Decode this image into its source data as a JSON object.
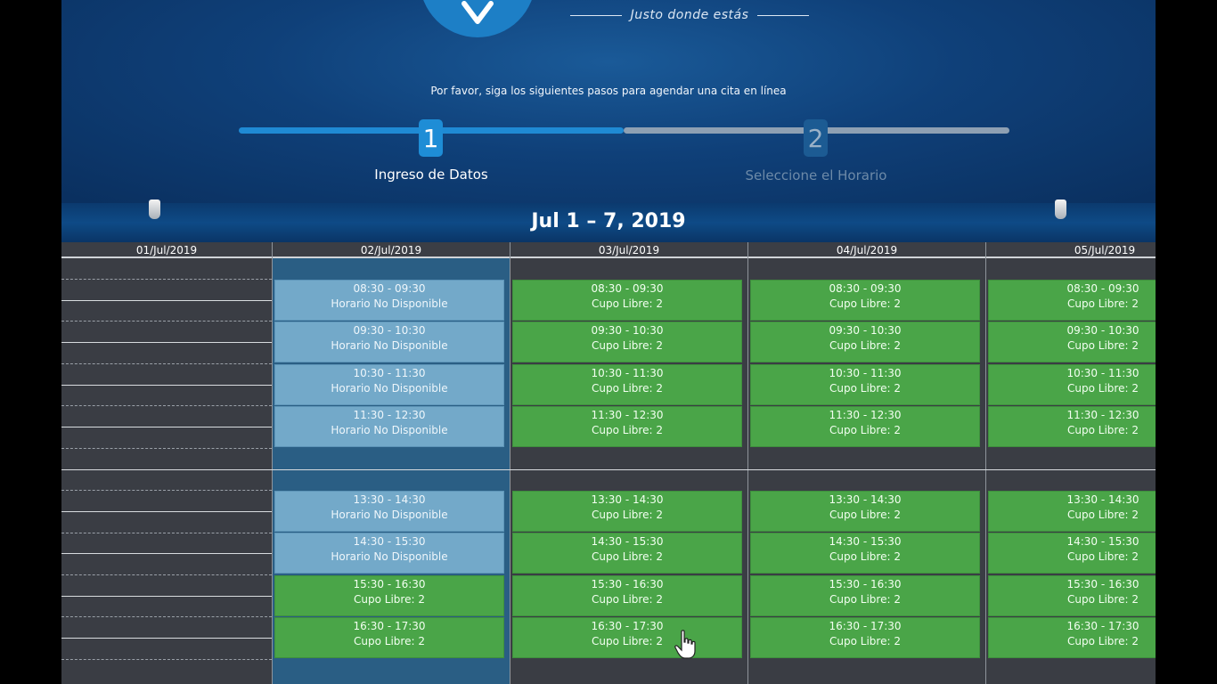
{
  "header": {
    "tagline": "Justo donde estás",
    "instructions": "Por favor, siga los siguientes pasos para agendar una cita en línea"
  },
  "steps": [
    {
      "number": "1",
      "label": "Ingreso de Datos",
      "status": "active"
    },
    {
      "number": "2",
      "label": "Seleccione el Horario",
      "status": "inactive"
    }
  ],
  "calendar": {
    "week_title": "Jul 1 – 7, 2019",
    "days": [
      "01/Jul/2019",
      "02/Jul/2019",
      "03/Jul/2019",
      "04/Jul/2019",
      "05/Jul/2019"
    ],
    "columns": [
      {
        "date": "02/Jul/2019",
        "slots": [
          {
            "time": "08:30 - 09:30",
            "status": "Horario No Disponible",
            "available": false
          },
          {
            "time": "09:30 - 10:30",
            "status": "Horario No Disponible",
            "available": false
          },
          {
            "time": "10:30 - 11:30",
            "status": "Horario No Disponible",
            "available": false
          },
          {
            "time": "11:30 - 12:30",
            "status": "Horario No Disponible",
            "available": false
          },
          {
            "time": "13:30 - 14:30",
            "status": "Horario No Disponible",
            "available": false
          },
          {
            "time": "14:30 - 15:30",
            "status": "Horario No Disponible",
            "available": false
          },
          {
            "time": "15:30 - 16:30",
            "status": "Cupo Libre: 2",
            "available": true
          },
          {
            "time": "16:30 - 17:30",
            "status": "Cupo Libre: 2",
            "available": true
          }
        ]
      },
      {
        "date": "03/Jul/2019",
        "slots": [
          {
            "time": "08:30 - 09:30",
            "status": "Cupo Libre: 2",
            "available": true
          },
          {
            "time": "09:30 - 10:30",
            "status": "Cupo Libre: 2",
            "available": true
          },
          {
            "time": "10:30 - 11:30",
            "status": "Cupo Libre: 2",
            "available": true
          },
          {
            "time": "11:30 - 12:30",
            "status": "Cupo Libre: 2",
            "available": true
          },
          {
            "time": "13:30 - 14:30",
            "status": "Cupo Libre: 2",
            "available": true
          },
          {
            "time": "14:30 - 15:30",
            "status": "Cupo Libre: 2",
            "available": true
          },
          {
            "time": "15:30 - 16:30",
            "status": "Cupo Libre: 2",
            "available": true
          },
          {
            "time": "16:30 - 17:30",
            "status": "Cupo Libre: 2",
            "available": true
          }
        ]
      },
      {
        "date": "04/Jul/2019",
        "slots": [
          {
            "time": "08:30 - 09:30",
            "status": "Cupo Libre: 2",
            "available": true
          },
          {
            "time": "09:30 - 10:30",
            "status": "Cupo Libre: 2",
            "available": true
          },
          {
            "time": "10:30 - 11:30",
            "status": "Cupo Libre: 2",
            "available": true
          },
          {
            "time": "11:30 - 12:30",
            "status": "Cupo Libre: 2",
            "available": true
          },
          {
            "time": "13:30 - 14:30",
            "status": "Cupo Libre: 2",
            "available": true
          },
          {
            "time": "14:30 - 15:30",
            "status": "Cupo Libre: 2",
            "available": true
          },
          {
            "time": "15:30 - 16:30",
            "status": "Cupo Libre: 2",
            "available": true
          },
          {
            "time": "16:30 - 17:30",
            "status": "Cupo Libre: 2",
            "available": true
          }
        ]
      },
      {
        "date": "05/Jul/2019",
        "slots": [
          {
            "time": "08:30 - 09:30",
            "status": "Cupo Libre: 2",
            "available": true
          },
          {
            "time": "09:30 - 10:30",
            "status": "Cupo Libre: 2",
            "available": true
          },
          {
            "time": "10:30 - 11:30",
            "status": "Cupo Libre: 2",
            "available": true
          },
          {
            "time": "11:30 - 12:30",
            "status": "Cupo Libre: 2",
            "available": true
          },
          {
            "time": "13:30 - 14:30",
            "status": "Cupo Libre: 2",
            "available": true
          },
          {
            "time": "14:30 - 15:30",
            "status": "Cupo Libre: 2",
            "available": true
          },
          {
            "time": "15:30 - 16:30",
            "status": "Cupo Libre: 2",
            "available": true
          },
          {
            "time": "16:30 - 17:30",
            "status": "Cupo Libre: 2",
            "available": true
          }
        ]
      }
    ]
  },
  "colors": {
    "free_slot": "#4aa548",
    "unavailable_slot": "#73a9c9",
    "brand_blue": "#1e8dd6"
  },
  "icons": [
    "logo-v-icon",
    "prev-week-icon",
    "next-week-icon",
    "hand-pointer-cursor-icon"
  ]
}
